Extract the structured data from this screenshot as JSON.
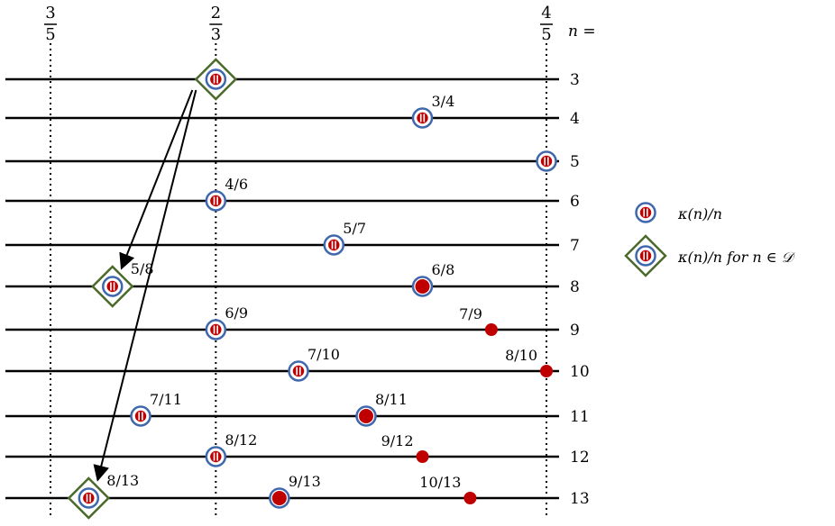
{
  "header": {
    "n_label": "n =",
    "fractions": [
      {
        "num": "3",
        "den": "5",
        "value": 0.6
      },
      {
        "num": "2",
        "den": "3",
        "value": 0.6666667
      },
      {
        "num": "4",
        "den": "5",
        "value": 0.8
      }
    ]
  },
  "colors": {
    "ring": "#3f67ad",
    "red": "#c00000",
    "diamond_stroke": "#4a6a2a",
    "line": "#000000"
  },
  "rows": [
    {
      "n": "3",
      "marks": [
        {
          "value": 0.6666667,
          "kind": "diamond",
          "label": ""
        }
      ]
    },
    {
      "n": "4",
      "marks": [
        {
          "value": 0.75,
          "kind": "ring",
          "label": "3/4"
        }
      ]
    },
    {
      "n": "5",
      "marks": [
        {
          "value": 0.8,
          "kind": "ring",
          "label": ""
        }
      ]
    },
    {
      "n": "6",
      "marks": [
        {
          "value": 0.6666667,
          "kind": "ring",
          "label": "4/6"
        }
      ]
    },
    {
      "n": "7",
      "marks": [
        {
          "value": 0.7142857,
          "kind": "ring",
          "label": "5/7"
        }
      ]
    },
    {
      "n": "8",
      "marks": [
        {
          "value": 0.625,
          "kind": "diamond",
          "label": "5/8"
        },
        {
          "value": 0.75,
          "kind": "ringdot",
          "label": "6/8"
        }
      ]
    },
    {
      "n": "9",
      "marks": [
        {
          "value": 0.6666667,
          "kind": "ring",
          "label": "6/9"
        },
        {
          "value": 0.7777778,
          "kind": "dot",
          "label": "7/9"
        }
      ]
    },
    {
      "n": "10",
      "marks": [
        {
          "value": 0.7,
          "kind": "ring",
          "label": "7/10"
        },
        {
          "value": 0.8,
          "kind": "dot",
          "label": "8/10"
        }
      ]
    },
    {
      "n": "11",
      "marks": [
        {
          "value": 0.6363636,
          "kind": "ring",
          "label": "7/11"
        },
        {
          "value": 0.7272727,
          "kind": "ringdot",
          "label": "8/11"
        }
      ]
    },
    {
      "n": "12",
      "marks": [
        {
          "value": 0.6666667,
          "kind": "ring",
          "label": "8/12"
        },
        {
          "value": 0.75,
          "kind": "dot",
          "label": "9/12"
        }
      ]
    },
    {
      "n": "13",
      "marks": [
        {
          "value": 0.6153846,
          "kind": "diamond",
          "label": "8/13"
        },
        {
          "value": 0.6923077,
          "kind": "ringdot",
          "label": "9/13"
        },
        {
          "value": 0.7692308,
          "kind": "dot",
          "label": "10/13"
        }
      ]
    }
  ],
  "arrows": [
    {
      "from_n": "3",
      "to_n": "8"
    },
    {
      "from_n": "3",
      "to_n": "13"
    }
  ],
  "legend": [
    {
      "kind": "ring",
      "text": "κ(n)/n"
    },
    {
      "kind": "diamond",
      "text": "κ(n)/n for n ∈ 𝒟"
    }
  ]
}
